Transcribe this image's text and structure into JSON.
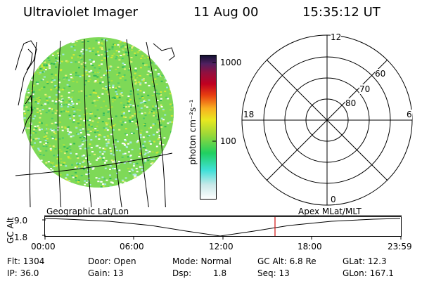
{
  "header": {
    "title": "Ultraviolet Imager",
    "date": "11 Aug 00",
    "time": "15:35:12 UT"
  },
  "colorbar": {
    "unit_label": "photon cm⁻²s⁻¹",
    "ticks": [
      "1000",
      "100"
    ]
  },
  "polar": {
    "mlt_labels": {
      "top": "12",
      "left": "18",
      "right": "6",
      "bottom": "0"
    },
    "lat_labels": [
      "60",
      "70",
      "80"
    ]
  },
  "timeline": {
    "left_label": "Geographic Lat/Lon",
    "right_label": "Apex MLat/MLT",
    "axis_label": "GC Alt",
    "y_ticks": [
      "9.0",
      "1.8"
    ],
    "x_ticks": [
      "00:00",
      "06:00",
      "12:00",
      "18:00",
      "23:59"
    ],
    "current_time": "15:35",
    "colors": {
      "marker": "#d01010"
    }
  },
  "status": {
    "flt": "Flt: 1304",
    "ip": "IP: 36.0",
    "door": "Door: Open",
    "gain": "Gain: 13",
    "mode": "Mode: Normal",
    "dsp": "Dsp:",
    "dsp_value": "1.8",
    "gc_alt": "GC Alt: 6.8 Re",
    "seq": "Seq: 13",
    "glat": "GLat: 12.3",
    "glon": "GLon: 167.1"
  }
}
